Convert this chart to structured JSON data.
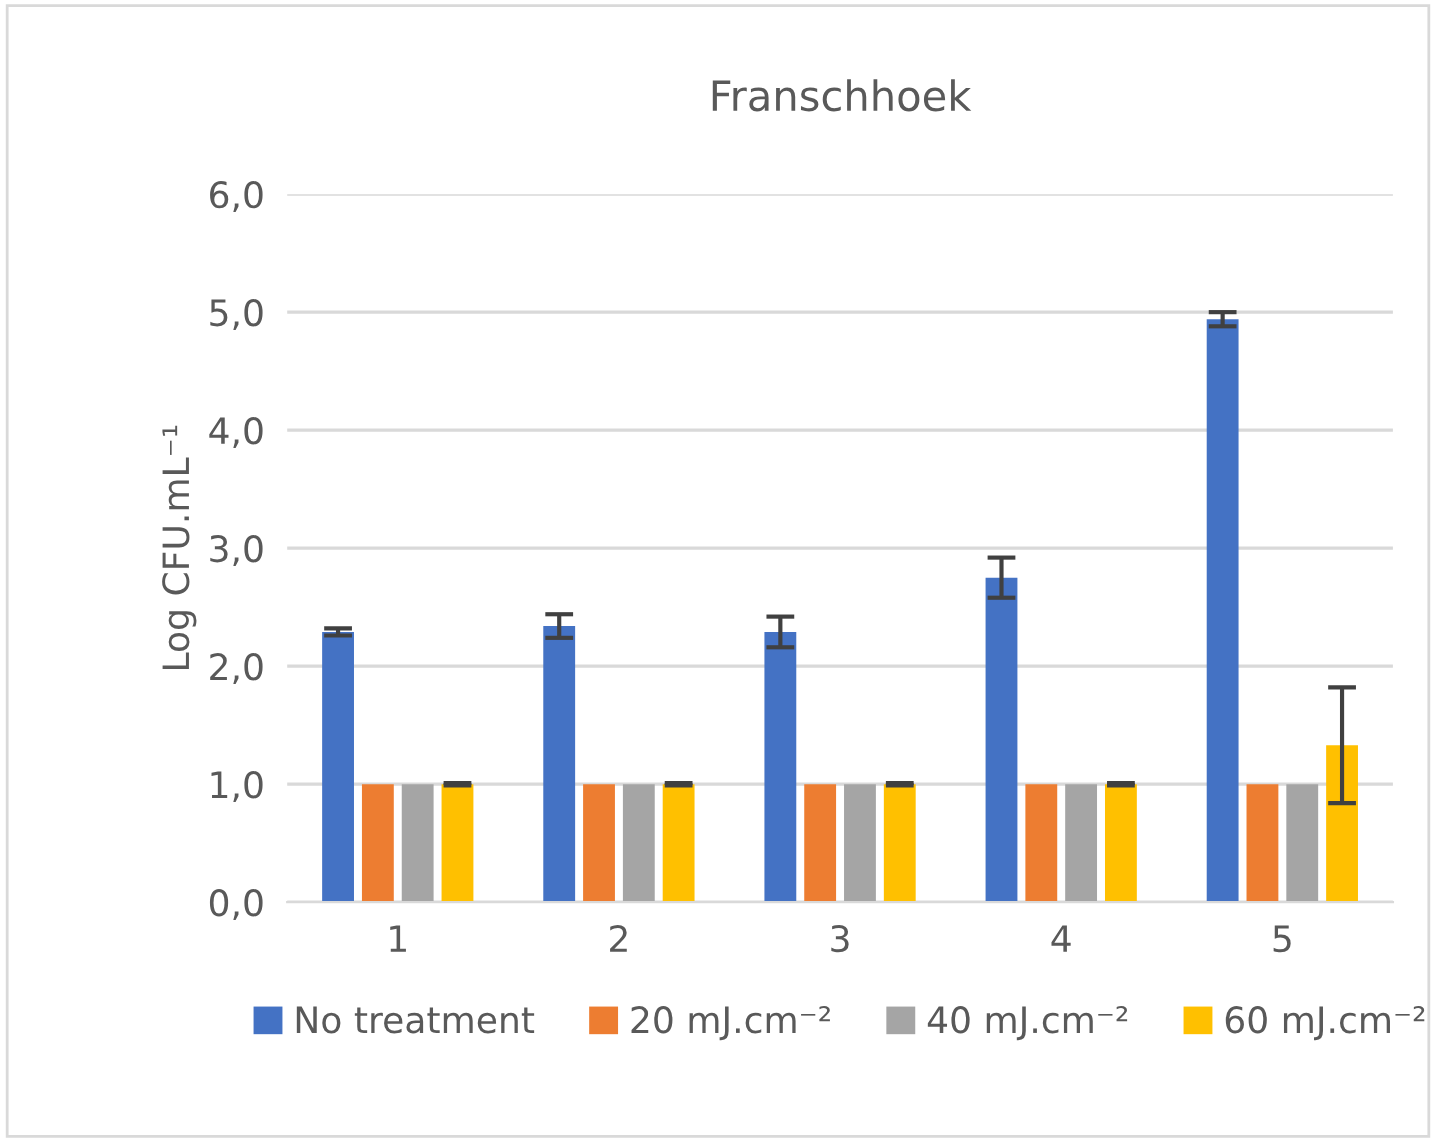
{
  "chart_data": {
    "type": "bar",
    "title": "Franschhoek",
    "ylabel": "Log CFU.mL⁻¹",
    "categories": [
      "1",
      "2",
      "3",
      "4",
      "5"
    ],
    "series": [
      {
        "name": "No treatment",
        "color": "#4472c4",
        "values": [
          2.29,
          2.34,
          2.29,
          2.75,
          4.94
        ],
        "errors": [
          0.03,
          0.1,
          0.13,
          0.17,
          0.06
        ]
      },
      {
        "name": "20 mJ.cm⁻²",
        "color": "#ed7d31",
        "values": [
          1.0,
          1.0,
          1.0,
          1.0,
          1.0
        ]
      },
      {
        "name": "40 mJ.cm⁻²",
        "color": "#a5a5a5",
        "values": [
          1.0,
          1.0,
          1.0,
          1.0,
          1.0
        ]
      },
      {
        "name": "60 mJ.cm⁻²",
        "color": "#ffc000",
        "values": [
          1.0,
          1.0,
          1.0,
          1.0,
          1.33
        ],
        "errors": [
          0.01,
          0.01,
          0.01,
          0.01,
          0.49
        ]
      }
    ],
    "ylim": [
      0,
      6
    ],
    "yticks": [
      {
        "value": 0,
        "label": "0,0"
      },
      {
        "value": 1,
        "label": "1,0"
      },
      {
        "value": 2,
        "label": "2,0"
      },
      {
        "value": 3,
        "label": "3,0"
      },
      {
        "value": 4,
        "label": "4,0"
      },
      {
        "value": 5,
        "label": "5,0"
      },
      {
        "value": 6,
        "label": "6,0"
      }
    ],
    "grid": "y",
    "legend": "bottom"
  }
}
